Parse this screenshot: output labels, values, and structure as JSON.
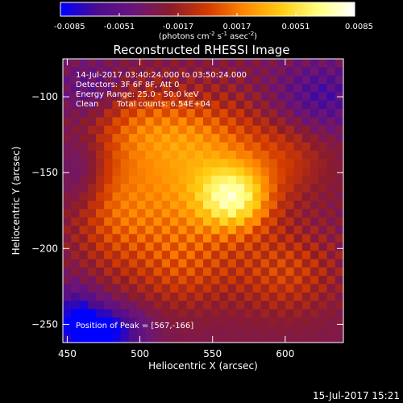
{
  "chart_data": {
    "type": "heatmap",
    "title": "Reconstructed RHESSI Image",
    "xlabel": "Heliocentric X (arcsec)",
    "ylabel": "Heliocentric Y (arcsec)",
    "xlim": [
      447,
      640
    ],
    "ylim": [
      -262,
      -75
    ],
    "xticks": [
      450,
      500,
      550,
      600
    ],
    "yticks": [
      -100,
      -150,
      -200,
      -250
    ],
    "colorbar": {
      "min": -0.0085,
      "max": 0.0085,
      "ticks": [
        "-0.0085",
        "-0.0051",
        "-0.0017",
        "0.0017",
        "0.0051",
        "0.0085"
      ],
      "unit_parts": [
        "(photons cm",
        "-2",
        " s",
        "-1",
        " asec",
        "-2",
        ")"
      ],
      "colors": [
        "#0000ff",
        "#4b0c8f",
        "#6a157a",
        "#8c1c2a",
        "#d23a00",
        "#ff8800",
        "#ffcc10",
        "#ffff80",
        "#ffffff"
      ]
    },
    "annotations": [
      "14-Jul-2017 03:40:24.000 to 03:50:24.000",
      "Detectors: 3F 6F 8F, Att 0",
      "Energy Range: 25.0 - 50.0 keV",
      "Clean",
      "Total counts: 6.54E+04"
    ],
    "peak": {
      "x": 567,
      "y": -166
    },
    "peak_label": "Position of Peak = [567,-166]",
    "sources": [
      {
        "x": 565,
        "y": -167,
        "sx": 17,
        "sy": 15,
        "amp": 0.0075
      },
      {
        "x": 525,
        "y": -170,
        "sx": 32,
        "sy": 28,
        "amp": 0.0042
      },
      {
        "x": 545,
        "y": -130,
        "sx": 28,
        "sy": 22,
        "amp": 0.0035
      },
      {
        "x": 500,
        "y": -120,
        "sx": 25,
        "sy": 18,
        "amp": 0.003
      },
      {
        "x": 600,
        "y": -215,
        "sx": 25,
        "sy": 20,
        "amp": 0.0028
      },
      {
        "x": 480,
        "y": -175,
        "sx": 20,
        "sy": 28,
        "amp": 0.0026
      },
      {
        "x": 600,
        "y": -140,
        "sx": 22,
        "sy": 20,
        "amp": 0.0022
      },
      {
        "x": 530,
        "y": -215,
        "sx": 25,
        "sy": 18,
        "amp": 0.0022
      },
      {
        "x": 475,
        "y": -255,
        "sx": 18,
        "sy": 12,
        "amp": -0.006
      },
      {
        "x": 455,
        "y": -245,
        "sx": 12,
        "sy": 15,
        "amp": -0.004
      },
      {
        "x": 625,
        "y": -100,
        "sx": 22,
        "sy": 16,
        "amp": -0.0032
      },
      {
        "x": 465,
        "y": -95,
        "sx": 14,
        "sy": 12,
        "amp": -0.0022
      },
      {
        "x": 460,
        "y": -150,
        "sx": 12,
        "sy": 18,
        "amp": -0.002
      }
    ],
    "background": -0.003,
    "grid": false
  },
  "footer_timestamp": "15-Jul-2017 15:21"
}
